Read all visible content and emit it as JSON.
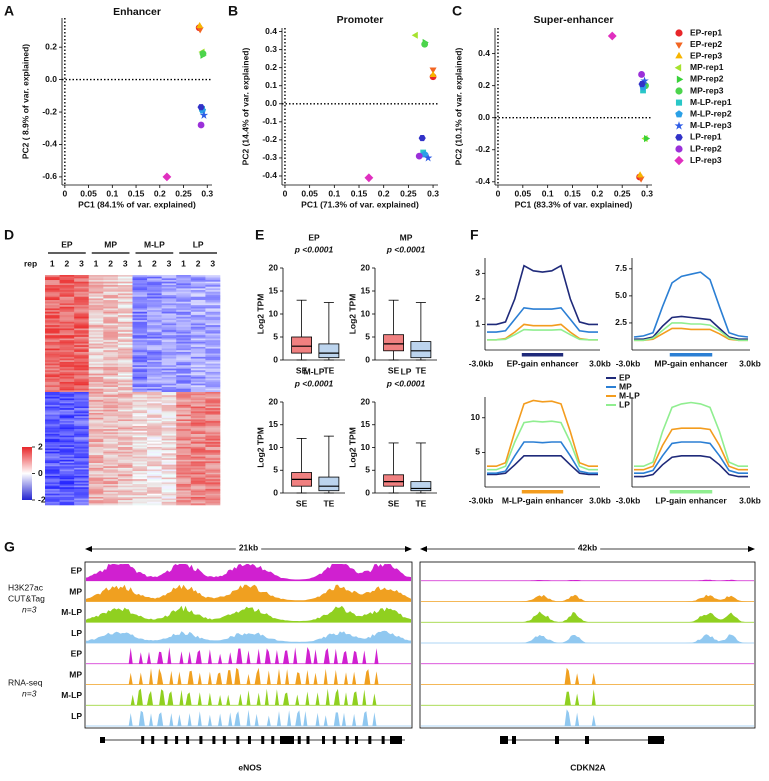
{
  "panel_labels": [
    "A",
    "B",
    "C",
    "D",
    "E",
    "F",
    "G"
  ],
  "chart_data": [
    {
      "type": "scatter",
      "series": [
        {
          "name": "EP-rep1",
          "color": "#e8262a",
          "marker": "circle"
        },
        {
          "name": "EP-rep2",
          "color": "#f26522",
          "marker": "tri-down"
        },
        {
          "name": "EP-rep3",
          "color": "#f7b500",
          "marker": "tri-up"
        },
        {
          "name": "MP-rep1",
          "color": "#a6e22e",
          "marker": "tri-left"
        },
        {
          "name": "MP-rep2",
          "color": "#3ad13a",
          "marker": "tri-right"
        },
        {
          "name": "MP-rep3",
          "color": "#4cd44c",
          "marker": "circle"
        },
        {
          "name": "M-LP-rep1",
          "color": "#29c7c7",
          "marker": "square"
        },
        {
          "name": "M-LP-rep2",
          "color": "#2aa0e6",
          "marker": "pentagon"
        },
        {
          "name": "M-LP-rep3",
          "color": "#2e5ce6",
          "marker": "star"
        },
        {
          "name": "LP-rep1",
          "color": "#3232c8",
          "marker": "hexagon"
        },
        {
          "name": "LP-rep2",
          "color": "#9b30d9",
          "marker": "circle"
        },
        {
          "name": "LP-rep3",
          "color": "#e02fbf",
          "marker": "diamond"
        }
      ],
      "panels": [
        {
          "title": "Enhancer",
          "xlabel": "PC1 (84.1% of var. explained)",
          "ylabel": "PC2 ( 8.9% of var. explained)",
          "xlim": [
            -0.006,
            0.31
          ],
          "xticks": [
            0,
            0.05,
            0.1,
            0.15,
            0.2,
            0.25,
            0.3
          ],
          "ylim": [
            -0.65,
            0.38
          ],
          "yticks": [
            0.2,
            {
              "value": 0,
              "label": "0.0"
            },
            -0.2,
            -0.4,
            -0.6
          ],
          "x": [
            0.283,
            0.285,
            0.284,
            0.29,
            0.29,
            0.291,
            0.289,
            0.29,
            0.293,
            0.287,
            0.287,
            0.215
          ],
          "y": [
            0.32,
            0.31,
            0.33,
            0.17,
            0.15,
            0.16,
            -0.18,
            -0.19,
            -0.22,
            -0.17,
            -0.28,
            -0.6
          ]
        },
        {
          "title": "Promoter",
          "xlabel": "PC1 (71.3% of var. explained)",
          "ylabel": "PC2 (14.4% of var. explained)",
          "xlim": [
            -0.006,
            0.31
          ],
          "xticks": [
            0,
            0.05,
            0.1,
            0.15,
            0.2,
            0.25,
            0.3
          ],
          "ylim": [
            -0.45,
            0.42
          ],
          "yticks": [
            0.4,
            0.3,
            0.2,
            0.1,
            {
              "value": 0,
              "label": "0.0"
            },
            -0.1,
            -0.2,
            -0.3,
            -0.4
          ],
          "x": [
            0.3,
            0.3,
            0.3,
            0.265,
            0.283,
            0.283,
            0.28,
            0.283,
            0.29,
            0.278,
            0.272,
            0.17
          ],
          "y": [
            0.15,
            0.19,
            0.16,
            0.38,
            0.34,
            0.33,
            -0.27,
            -0.28,
            -0.3,
            -0.19,
            -0.29,
            -0.41
          ]
        },
        {
          "title": "Super-enhancer",
          "xlabel": "PC1 (83.3% of var. explained)",
          "ylabel": "PC2 (10.1% of var. explained)",
          "xlim": [
            -0.006,
            0.31
          ],
          "xticks": [
            0,
            0.05,
            0.1,
            0.15,
            0.2,
            0.25,
            0.3
          ],
          "ylim": [
            -0.42,
            0.56
          ],
          "yticks": [
            0.4,
            0.2,
            {
              "value": 0,
              "label": "0.0"
            },
            -0.2,
            -0.4
          ],
          "x": [
            0.285,
            0.288,
            0.286,
            0.297,
            0.298,
            0.297,
            0.292,
            0.292,
            0.295,
            0.29,
            0.289,
            0.23
          ],
          "y": [
            -0.37,
            -0.38,
            -0.36,
            -0.13,
            -0.13,
            0.2,
            0.17,
            0.19,
            0.23,
            0.21,
            0.27,
            0.51
          ]
        }
      ]
    },
    {
      "type": "box",
      "ylabel": "Log2 TPM",
      "ylim": [
        0,
        20
      ],
      "yticks": [
        0,
        5,
        10,
        15,
        20
      ],
      "colors": [
        "#f08080",
        "#bcd4ee"
      ],
      "panels": [
        {
          "title": "EP",
          "subtitle": "p <0.0001",
          "categories": [
            "SE",
            "TE"
          ],
          "boxes": [
            {
              "min": 0,
              "q1": 1.5,
              "median": 3,
              "q3": 5,
              "max": 13
            },
            {
              "min": 0,
              "q1": 0.5,
              "median": 1.5,
              "q3": 3.5,
              "max": 12.5
            }
          ]
        },
        {
          "title": "MP",
          "subtitle": "p <0.0001",
          "categories": [
            "SE",
            "TE"
          ],
          "boxes": [
            {
              "min": 0,
              "q1": 2,
              "median": 3.5,
              "q3": 5.5,
              "max": 13
            },
            {
              "min": 0,
              "q1": 0.5,
              "median": 2,
              "q3": 4,
              "max": 12.5
            }
          ]
        },
        {
          "title": "M-LP",
          "subtitle": "p <0.0001",
          "categories": [
            "SE",
            "TE"
          ],
          "boxes": [
            {
              "min": 0,
              "q1": 1.5,
              "median": 3,
              "q3": 4.5,
              "max": 12
            },
            {
              "min": 0,
              "q1": 0.5,
              "median": 1.5,
              "q3": 3.5,
              "max": 12.5
            }
          ]
        },
        {
          "title": "LP",
          "subtitle": "p <0.0001",
          "categories": [
            "SE",
            "TE"
          ],
          "boxes": [
            {
              "min": 0,
              "q1": 1.5,
              "median": 2.5,
              "q3": 4,
              "max": 11
            },
            {
              "min": 0,
              "q1": 0.5,
              "median": 1,
              "q3": 2.5,
              "max": 11
            }
          ]
        }
      ]
    },
    {
      "type": "profile",
      "flank_labels": [
        "-3.0kb",
        "3.0kb"
      ],
      "series": [
        {
          "name": "EP",
          "color": "#1f2a7a"
        },
        {
          "name": "MP",
          "color": "#2b7fd4"
        },
        {
          "name": "M-LP",
          "color": "#f39c1e"
        },
        {
          "name": "LP",
          "color": "#90ee90"
        }
      ],
      "panels": [
        {
          "xlabel": "EP-gain enhancer",
          "ylim": [
            0,
            3.6
          ],
          "yticks": [
            1,
            2,
            3
          ],
          "values": [
            [
              1,
              1,
              1.1,
              2,
              3.3,
              3.1,
              3.05,
              3.1,
              3.3,
              2,
              1.1,
              1,
              1
            ],
            [
              0.7,
              0.7,
              0.75,
              1.2,
              1.65,
              1.6,
              1.6,
              1.6,
              1.65,
              1.2,
              0.75,
              0.7,
              0.7
            ],
            [
              0.4,
              0.4,
              0.45,
              0.7,
              1,
              0.95,
              0.95,
              0.95,
              1,
              0.7,
              0.45,
              0.4,
              0.4
            ],
            [
              0.4,
              0.4,
              0.42,
              0.6,
              0.8,
              0.78,
              0.78,
              0.78,
              0.8,
              0.6,
              0.42,
              0.4,
              0.4
            ]
          ]
        },
        {
          "xlabel": "MP-gain enhancer",
          "ylim": [
            0,
            8.5
          ],
          "yticks": [
            {
              "value": 2.5,
              "label": "2.5"
            },
            {
              "value": 5,
              "label": "5.0"
            },
            {
              "value": 7.5,
              "label": "7.5"
            }
          ],
          "values": [
            [
              1,
              1,
              1.2,
              2.2,
              3,
              3.1,
              3,
              2.9,
              2.8,
              2,
              1.2,
              1,
              1
            ],
            [
              1.2,
              1.3,
              1.6,
              4,
              6.2,
              6.8,
              7,
              7.2,
              6.5,
              4,
              1.6,
              1.3,
              1.2
            ],
            [
              0.9,
              0.9,
              1,
              1.5,
              2,
              2,
              1.9,
              1.9,
              1.9,
              1.5,
              1,
              0.9,
              0.9
            ],
            [
              0.9,
              0.9,
              1.1,
              1.8,
              2.5,
              2.5,
              2.4,
              2.4,
              2.3,
              1.8,
              1.1,
              0.9,
              0.9
            ]
          ]
        },
        {
          "xlabel": "M-LP-gain enhancer",
          "ylim": [
            0,
            13
          ],
          "yticks": [
            5,
            10
          ],
          "values": [
            [
              1.8,
              1.8,
              2,
              3.2,
              4.5,
              4.5,
              4.5,
              4.5,
              4.5,
              3.2,
              2,
              1.8,
              1.8
            ],
            [
              2,
              2,
              2.3,
              4.5,
              6.5,
              6.5,
              6.4,
              6.5,
              6.5,
              4.5,
              2.3,
              2,
              2
            ],
            [
              3,
              3,
              3.5,
              8,
              12,
              12.5,
              12.3,
              12.4,
              12,
              8,
              3.5,
              3,
              3
            ],
            [
              2.5,
              2.5,
              3,
              6.5,
              9.3,
              9.5,
              9.4,
              9.5,
              9.3,
              6.5,
              3,
              2.5,
              2.5
            ]
          ]
        },
        {
          "xlabel": "LP-gain enhancer",
          "ylim": [
            0,
            13
          ],
          "yticks": [],
          "values": [
            [
              1.5,
              1.5,
              1.8,
              3.2,
              4.3,
              4.5,
              4.5,
              4.5,
              4.3,
              3.2,
              1.8,
              1.5,
              1.5
            ],
            [
              2,
              2,
              2.4,
              4.5,
              6.3,
              6.5,
              6.5,
              6.5,
              6.3,
              4.5,
              2.4,
              2,
              2
            ],
            [
              2.5,
              2.5,
              3,
              6,
              8.3,
              8.5,
              8.5,
              8.5,
              8.3,
              6,
              3,
              2.5,
              2.5
            ],
            [
              3,
              3,
              3.6,
              8,
              11.5,
              12,
              12.2,
              12,
              11.5,
              8,
              3.6,
              3,
              3
            ]
          ]
        }
      ]
    }
  ],
  "heatmap": {
    "groups": [
      "EP",
      "MP",
      "M-LP",
      "LP"
    ],
    "rep_label": "rep",
    "reps": [
      1,
      2,
      3
    ],
    "colorbar_ticks": [
      2,
      0,
      -2
    ]
  },
  "tracks": {
    "scales": [
      "21kb",
      "42kb"
    ],
    "assays": [
      {
        "lines": [
          "H3K27ac",
          "CUT&Tag"
        ],
        "n": "n=3"
      },
      {
        "lines": [
          "RNA-seq"
        ],
        "n": "n=3"
      }
    ],
    "labels": [
      "EP",
      "MP",
      "M-LP",
      "LP"
    ],
    "colors": [
      "#d020d0",
      "#f0a020",
      "#90d020",
      "#90c8f0"
    ],
    "genes": [
      "eNOS",
      "CDKN2A"
    ]
  }
}
